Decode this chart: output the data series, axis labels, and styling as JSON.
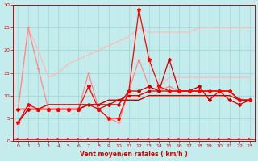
{
  "x": [
    0,
    1,
    2,
    3,
    4,
    5,
    6,
    7,
    8,
    9,
    10,
    11,
    12,
    13,
    14,
    15,
    16,
    17,
    18,
    19,
    20,
    21,
    22,
    23
  ],
  "line_pale1": [
    7,
    25,
    20,
    14,
    15,
    17,
    18,
    19,
    20,
    21,
    22,
    23,
    25,
    24,
    24,
    24,
    24,
    24,
    25,
    25,
    25,
    25,
    25,
    25
  ],
  "line_pale2": [
    7,
    7,
    7,
    7,
    7,
    7,
    7,
    8,
    8,
    9,
    9,
    10,
    10,
    11,
    12,
    14,
    14,
    14,
    14,
    14,
    14,
    14,
    14,
    14
  ],
  "line1": [
    7,
    25,
    16,
    7,
    7,
    7,
    7,
    15,
    7,
    5,
    4,
    11,
    18,
    12,
    11,
    12,
    11,
    11,
    11,
    11,
    11,
    11,
    9,
    9
  ],
  "line2": [
    4,
    8,
    7,
    7,
    7,
    7,
    7,
    12,
    7,
    5,
    5,
    11,
    29,
    18,
    12,
    11,
    11,
    11,
    11,
    11,
    11,
    11,
    9,
    9
  ],
  "line3": [
    7,
    7,
    7,
    7,
    7,
    7,
    7,
    8,
    7,
    8,
    8,
    11,
    11,
    12,
    11,
    18,
    11,
    11,
    12,
    9,
    11,
    9,
    8,
    9
  ],
  "line4": [
    7,
    7,
    7,
    7,
    7,
    7,
    7,
    8,
    8,
    8,
    9,
    10,
    10,
    11,
    11,
    11,
    11,
    11,
    11,
    11,
    11,
    11,
    9,
    9
  ],
  "line5": [
    4,
    7,
    7,
    8,
    8,
    8,
    8,
    8,
    8,
    9,
    9,
    9,
    9,
    10,
    10,
    10,
    10,
    10,
    10,
    10,
    10,
    10,
    9,
    9
  ],
  "wind_y": 0.4,
  "ylim": [
    0,
    30
  ],
  "xlim": [
    -0.5,
    23.5
  ],
  "yticks": [
    0,
    5,
    10,
    15,
    20,
    25,
    30
  ],
  "xticks": [
    0,
    1,
    2,
    3,
    4,
    5,
    6,
    7,
    8,
    9,
    10,
    11,
    12,
    13,
    14,
    15,
    16,
    17,
    18,
    19,
    20,
    21,
    22,
    23
  ],
  "xlabel": "Vent moyen/en rafales ( km/h )",
  "bg_color": "#c5ecec",
  "grid_color": "#99d6d6",
  "pale_color": "#ffbbbb",
  "line1_color": "#ff8888",
  "line2_color": "#ff0000",
  "line3_color": "#cc0000",
  "line4_color": "#cc0000",
  "line5_color": "#cc0000",
  "wind_color": "#dd0000"
}
